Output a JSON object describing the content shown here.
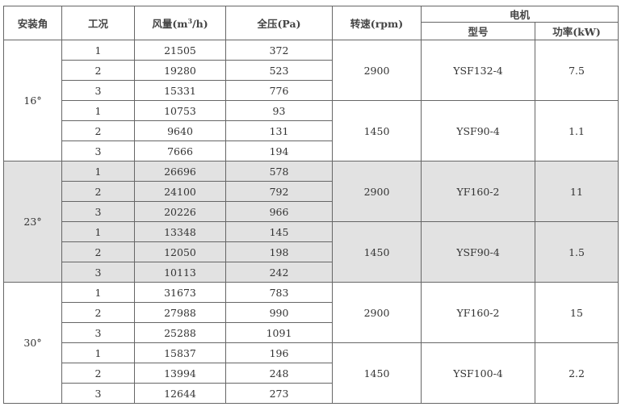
{
  "headers": {
    "angle": "安装角",
    "condition": "工况",
    "airflow_prefix": "风量(m",
    "airflow_sup": "3",
    "airflow_suffix": "/h)",
    "pressure": "全压(Pa)",
    "speed": "转速(rpm)",
    "motor": "电机",
    "model": "型号",
    "power": "功率(kW)"
  },
  "groups": [
    {
      "angle": "16°",
      "shaded": false,
      "speeds": [
        {
          "speed": "2900",
          "model": "YSF132-4",
          "power": "7.5",
          "rows": [
            [
              "1",
              "21505",
              "372"
            ],
            [
              "2",
              "19280",
              "523"
            ],
            [
              "3",
              "15331",
              "776"
            ]
          ]
        },
        {
          "speed": "1450",
          "model": "YSF90-4",
          "power": "1.1",
          "rows": [
            [
              "1",
              "10753",
              "93"
            ],
            [
              "2",
              "9640",
              "131"
            ],
            [
              "3",
              "7666",
              "194"
            ]
          ]
        }
      ]
    },
    {
      "angle": "23°",
      "shaded": true,
      "speeds": [
        {
          "speed": "2900",
          "model": "YF160-2",
          "power": "11",
          "rows": [
            [
              "1",
              "26696",
              "578"
            ],
            [
              "2",
              "24100",
              "792"
            ],
            [
              "3",
              "20226",
              "966"
            ]
          ]
        },
        {
          "speed": "1450",
          "model": "YSF90-4",
          "power": "1.5",
          "rows": [
            [
              "1",
              "13348",
              "145"
            ],
            [
              "2",
              "12050",
              "198"
            ],
            [
              "3",
              "10113",
              "242"
            ]
          ]
        }
      ]
    },
    {
      "angle": "30°",
      "shaded": false,
      "speeds": [
        {
          "speed": "2900",
          "model": "YF160-2",
          "power": "15",
          "rows": [
            [
              "1",
              "31673",
              "783"
            ],
            [
              "2",
              "27988",
              "990"
            ],
            [
              "3",
              "25288",
              "1091"
            ]
          ]
        },
        {
          "speed": "1450",
          "model": "YSF100-4",
          "power": "2.2",
          "rows": [
            [
              "1",
              "15837",
              "196"
            ],
            [
              "2",
              "13994",
              "248"
            ],
            [
              "3",
              "12644",
              "273"
            ]
          ]
        }
      ]
    }
  ],
  "colors": {
    "shaded_bg": "#e2e2e2",
    "border": "#666666"
  }
}
